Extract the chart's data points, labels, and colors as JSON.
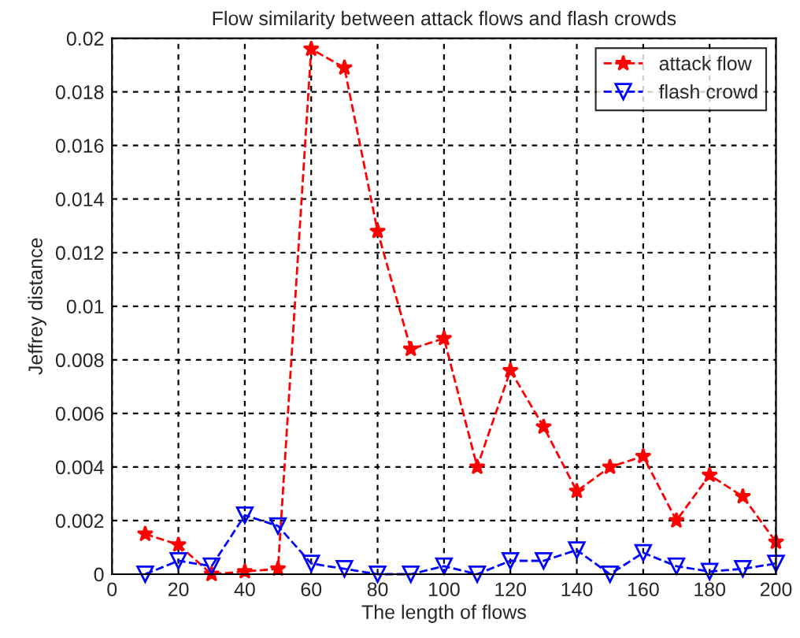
{
  "chart_data": {
    "type": "line",
    "title": "Flow similarity between attack flows and flash crowds",
    "xlabel": "The length of flows",
    "ylabel": "Jeffrey distance",
    "x": [
      10,
      20,
      30,
      40,
      50,
      60,
      70,
      80,
      90,
      100,
      110,
      120,
      130,
      140,
      150,
      160,
      170,
      180,
      190,
      200
    ],
    "series": [
      {
        "name": "attack flow",
        "color": "#ff0000",
        "marker": "star",
        "line_style": "dashed",
        "values": [
          0.0015,
          0.0011,
          0.0,
          0.0001,
          0.0002,
          0.0196,
          0.0189,
          0.0128,
          0.0084,
          0.0088,
          0.004,
          0.0076,
          0.0055,
          0.0031,
          0.004,
          0.0044,
          0.002,
          0.0037,
          0.0029,
          0.0012
        ]
      },
      {
        "name": "flash crowd",
        "color": "#0000ff",
        "marker": "triangle",
        "line_style": "dashed",
        "values": [
          0.0,
          0.0005,
          0.0003,
          0.0022,
          0.0018,
          0.0004,
          0.0002,
          0.0,
          0.0,
          0.0003,
          0.0,
          0.0005,
          0.0005,
          0.0009,
          0.0,
          0.0008,
          0.0003,
          0.0001,
          0.0002,
          0.0004
        ]
      }
    ],
    "xlim": [
      0,
      200
    ],
    "xticks": [
      0,
      20,
      40,
      60,
      80,
      100,
      120,
      140,
      160,
      180,
      200
    ],
    "ylim": [
      0,
      0.02
    ],
    "yticks": [
      0,
      0.002,
      0.004,
      0.006,
      0.008,
      0.01,
      0.012,
      0.014,
      0.016,
      0.018,
      0.02
    ],
    "grid": true,
    "legend": "top right"
  }
}
